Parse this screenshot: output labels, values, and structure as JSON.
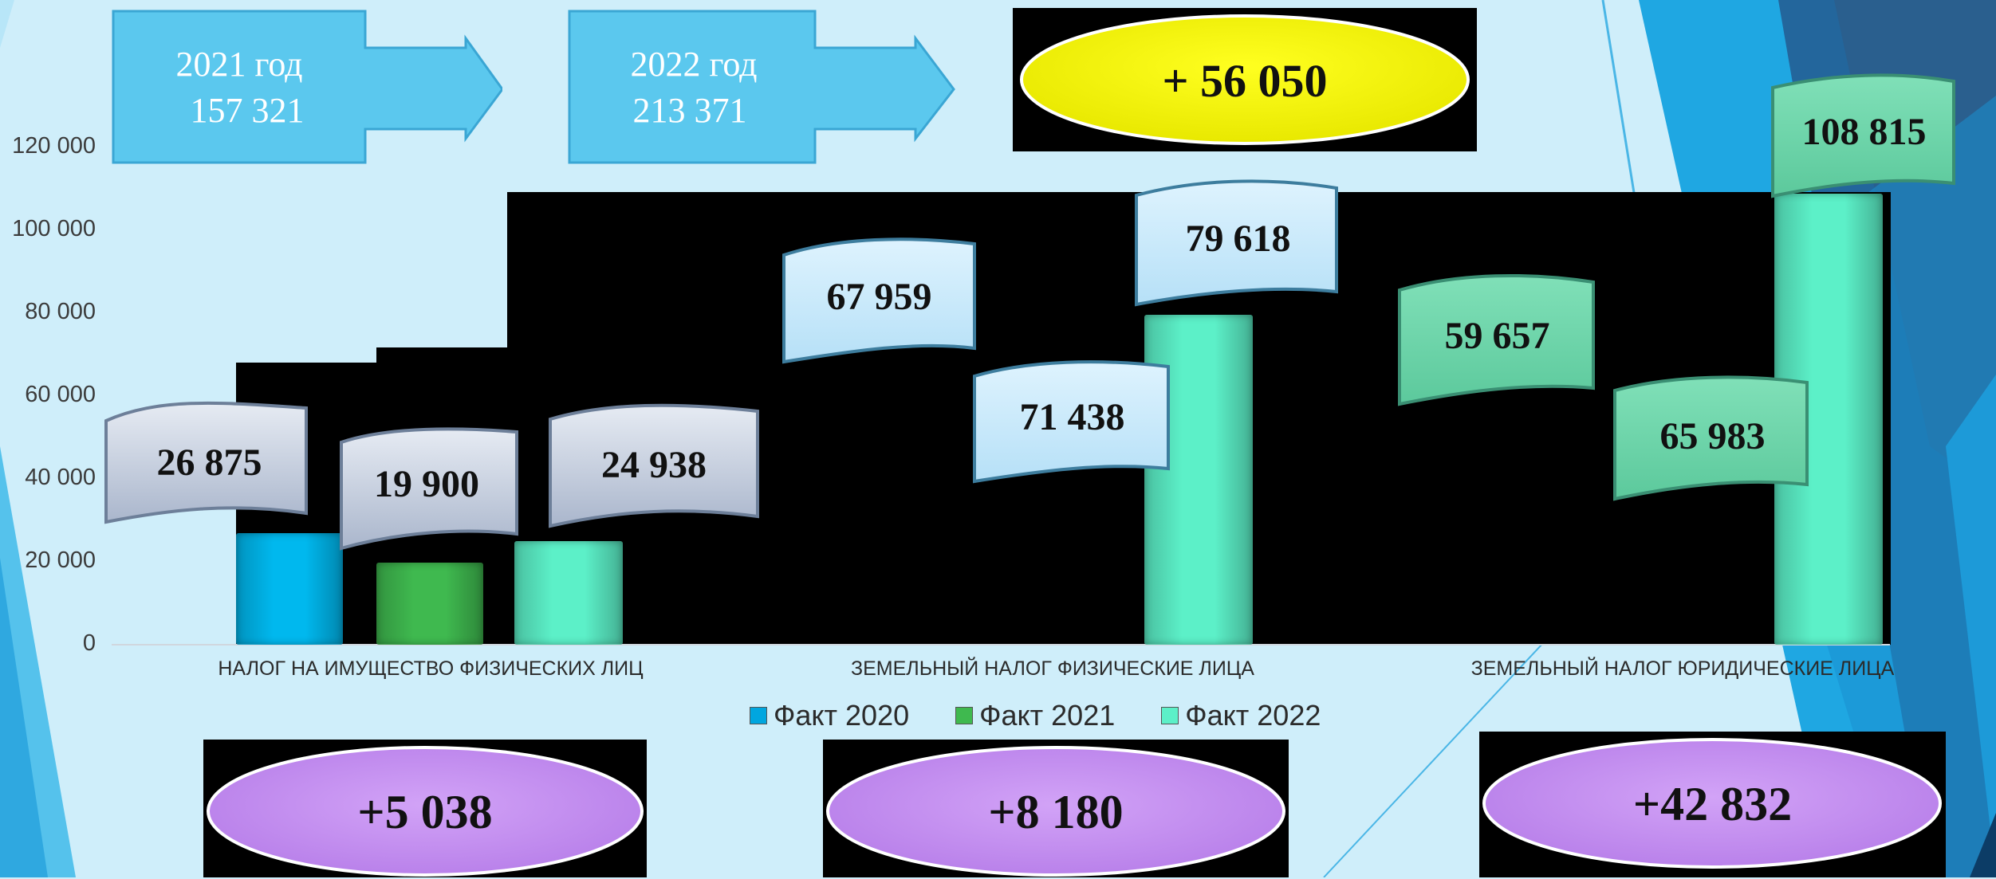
{
  "chart_data": {
    "type": "bar",
    "categories": [
      "НАЛОГ НА ИМУЩЕСТВО ФИЗИЧЕСКИХ ЛИЦ",
      "ЗЕМЕЛЬНЫЙ НАЛОГ ФИЗИЧЕСКИЕ ЛИЦА",
      "ЗЕМЕЛЬНЫЙ НАЛОГ ЮРИДИЧЕСКИЕ ЛИЦА"
    ],
    "series": [
      {
        "name": "Факт 2020",
        "values": [
          26875,
          67959,
          59657
        ],
        "color": "#00b8ee"
      },
      {
        "name": "Факт 2021",
        "values": [
          19900,
          71438,
          65983
        ],
        "color": "#3fb94f"
      },
      {
        "name": "Факт 2022",
        "values": [
          24938,
          79618,
          108815
        ],
        "color": "#5cf0c8"
      }
    ],
    "data_labels": [
      [
        "26 875",
        "67 959",
        "59 657"
      ],
      [
        "19 900",
        "71 438",
        "65 983"
      ],
      [
        "24 938",
        "79 618",
        "108 815"
      ]
    ],
    "yticks": [
      "0",
      "20 000",
      "40 000",
      "60 000",
      "80 000",
      "100 000",
      "120 000"
    ],
    "ylim": [
      0,
      120000
    ],
    "legend_position": "bottom",
    "grid": false,
    "title": "",
    "xlabel": "",
    "ylabel": ""
  },
  "totals": {
    "year_2021_label": "2021 год",
    "year_2021_value": "157 321",
    "year_2022_label": "2022 год",
    "year_2022_value": "213 371",
    "total_increase": "+ 56 050",
    "box_color": "#5bc8ee"
  },
  "category_increases": [
    "+5 038",
    "+8 180",
    "+42 832"
  ],
  "colors": {
    "ellipse_yellow": "#ffff00",
    "ellipse_purple": "#c48df2",
    "flag_grey": "#c6cfe0",
    "flag_lightblue": "#c9e9fb",
    "flag_green": "#66d4a6"
  }
}
